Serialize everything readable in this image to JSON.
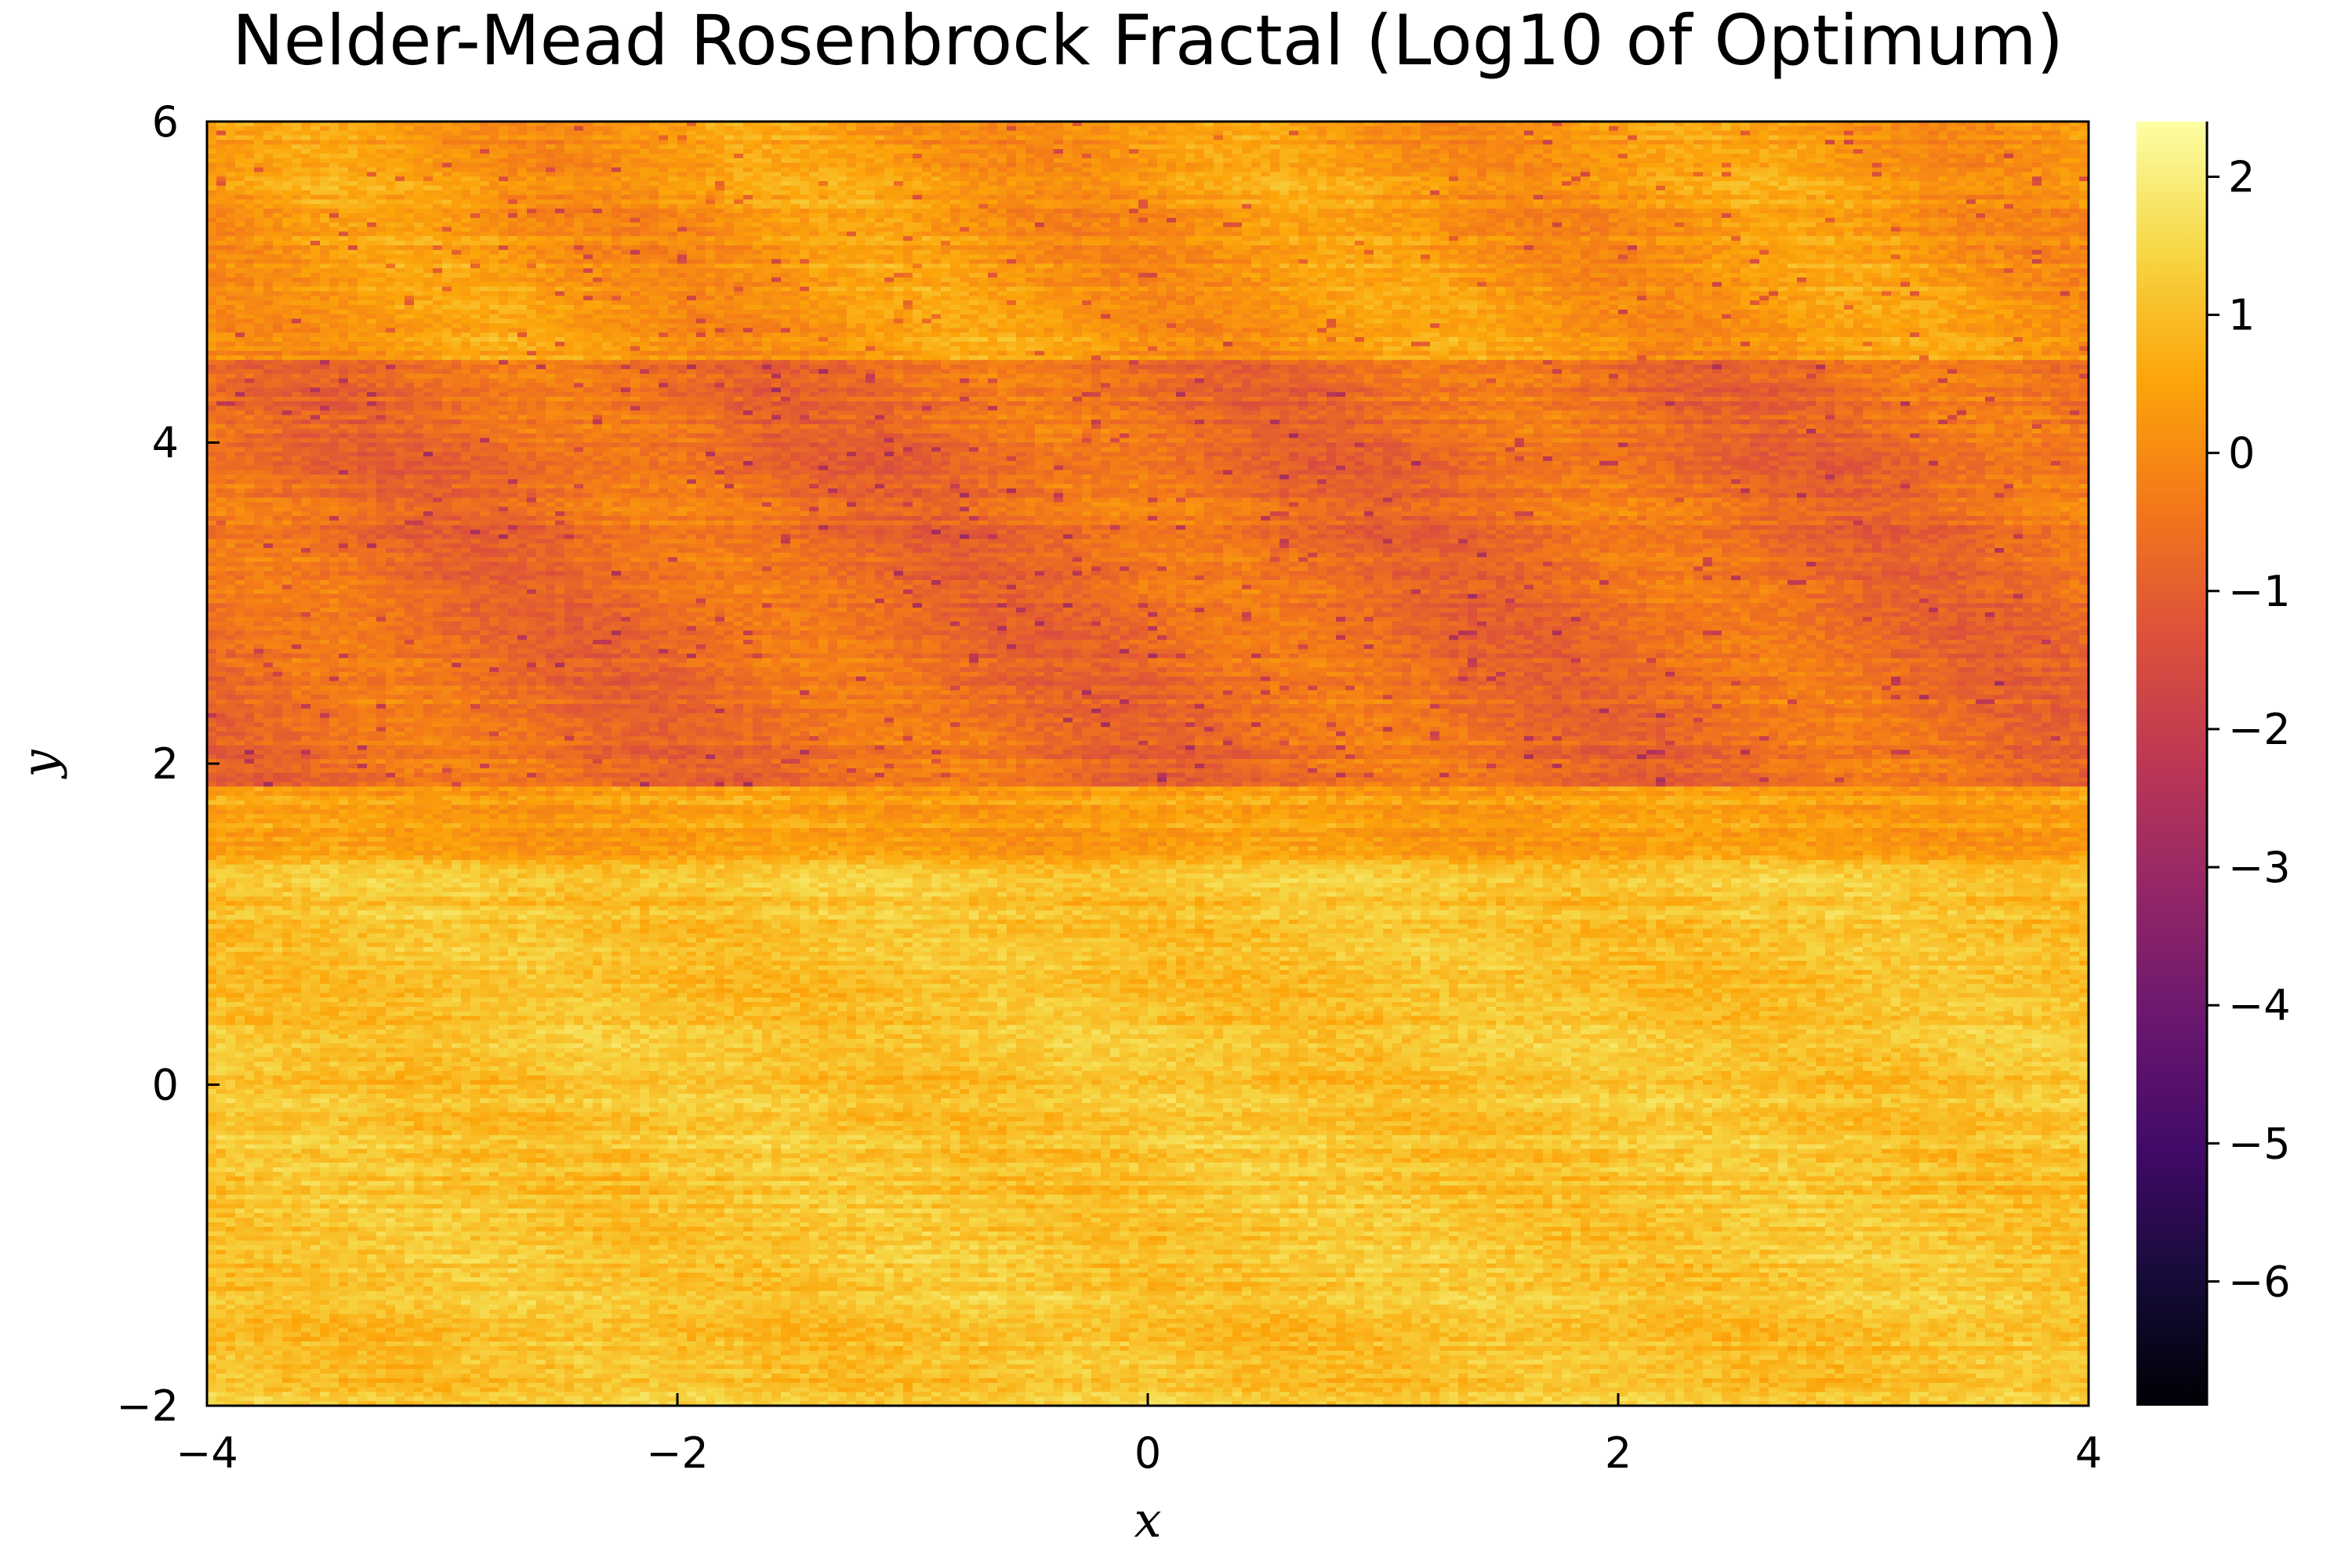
{
  "chart_data": {
    "type": "heatmap",
    "title": "Nelder-Mead Rosenbrock Fractal (Log10 of Optimum)",
    "xlabel": "x",
    "ylabel": "y",
    "xlim": [
      -4,
      4
    ],
    "ylim": [
      -2,
      6
    ],
    "x_ticks": [
      -4,
      -2,
      0,
      2,
      4
    ],
    "x_tick_labels": [
      "−4",
      "−2",
      "0",
      "2",
      "4"
    ],
    "y_ticks": [
      -2,
      0,
      2,
      4,
      6
    ],
    "y_tick_labels": [
      "−2",
      "0",
      "2",
      "4",
      "6"
    ],
    "colorbar": {
      "colormap": "inferno",
      "range": [
        -6.9,
        2.4
      ],
      "ticks": [
        2,
        1,
        0,
        -1,
        -2,
        -3,
        -4,
        -5,
        -6
      ],
      "tick_labels": [
        "2",
        "1",
        "0",
        "−1",
        "−2",
        "−3",
        "−4",
        "−5",
        "−6"
      ]
    },
    "regions": [
      {
        "y_range": [
          -2,
          1.4
        ],
        "approx_value": 1.1
      },
      {
        "y_range": [
          1.4,
          1.85
        ],
        "approx_value": 0.4
      },
      {
        "y_range": [
          1.85,
          4.5
        ],
        "approx_value": -0.6
      },
      {
        "y_range": [
          4.5,
          6
        ],
        "approx_value": 0.3
      }
    ],
    "period_x": 2,
    "grid": false,
    "legend": "none"
  }
}
